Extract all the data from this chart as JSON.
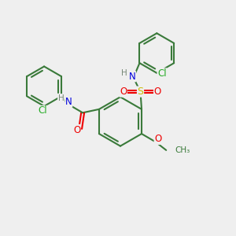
{
  "bg_color": "#efefef",
  "bond_color": "#3a7a3a",
  "bond_width": 1.5,
  "atom_colors": {
    "C": "#3a7a3a",
    "H": "#778877",
    "N": "#0000dd",
    "O": "#ee0000",
    "S": "#ccbb00",
    "Cl": "#22aa22"
  },
  "font_size": 8.5
}
